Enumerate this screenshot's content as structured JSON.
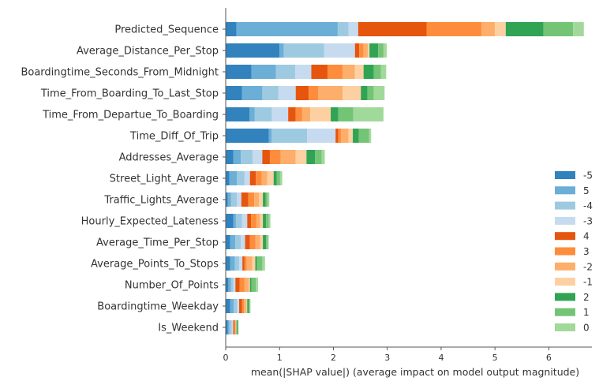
{
  "chart_data": {
    "type": "bar",
    "stacked": true,
    "orientation": "horizontal",
    "title": "",
    "xlabel": "mean(|SHAP value|) (average impact on model output magnitude)",
    "ylabel": "",
    "xlim": [
      0,
      6.8
    ],
    "xticks": [
      "0",
      "1",
      "2",
      "3",
      "4",
      "5",
      "6"
    ],
    "grid": false,
    "legend_position": "lower-right",
    "categories": [
      "Predicted_Sequence",
      "Average_Distance_Per_Stop",
      "Boardingtime_Seconds_From_Midnight",
      "Time_From_Boarding_To_Last_Stop",
      "Time_From_Departue_To_Boarding",
      "Time_Diff_Of_Trip",
      "Addresses_Average",
      "Street_Light_Average",
      "Traffic_Lights_Average",
      "Hourly_Expected_Lateness",
      "Average_Time_Per_Stop",
      "Average_Points_To_Stops",
      "Number_Of_Points",
      "Boardingtime_Weekday",
      "Is_Weekend"
    ],
    "series": [
      {
        "name": "-5",
        "color": "#3182bd",
        "values": [
          0.2,
          1.0,
          0.48,
          0.3,
          0.44,
          0.8,
          0.14,
          0.07,
          0.04,
          0.14,
          0.08,
          0.08,
          0.05,
          0.08,
          0.04
        ]
      },
      {
        "name": "5",
        "color": "#6baed6",
        "values": [
          1.88,
          0.08,
          0.45,
          0.38,
          0.1,
          0.05,
          0.14,
          0.14,
          0.06,
          0.05,
          0.1,
          0.09,
          0.05,
          0.07,
          0.03
        ]
      },
      {
        "name": "-4",
        "color": "#9ecae1",
        "values": [
          0.2,
          0.75,
          0.36,
          0.3,
          0.32,
          0.66,
          0.22,
          0.14,
          0.11,
          0.11,
          0.1,
          0.08,
          0.04,
          0.06,
          0.04
        ]
      },
      {
        "name": "-3",
        "color": "#c6dbef",
        "values": [
          0.18,
          0.57,
          0.3,
          0.32,
          0.3,
          0.53,
          0.18,
          0.1,
          0.08,
          0.1,
          0.08,
          0.06,
          0.04,
          0.04,
          0.03
        ]
      },
      {
        "name": "4",
        "color": "#e6550d",
        "values": [
          1.27,
          0.08,
          0.3,
          0.24,
          0.14,
          0.05,
          0.14,
          0.11,
          0.13,
          0.07,
          0.09,
          0.04,
          0.08,
          0.05,
          0.02
        ]
      },
      {
        "name": "3",
        "color": "#fd8d3c",
        "values": [
          1.02,
          0.08,
          0.28,
          0.18,
          0.12,
          0.05,
          0.2,
          0.11,
          0.11,
          0.1,
          0.1,
          0.04,
          0.09,
          0.04,
          0.02
        ]
      },
      {
        "name": "-2",
        "color": "#fdae6b",
        "values": [
          0.25,
          0.08,
          0.23,
          0.45,
          0.15,
          0.14,
          0.28,
          0.1,
          0.09,
          0.07,
          0.09,
          0.1,
          0.08,
          0.04,
          0.01
        ]
      },
      {
        "name": "-1",
        "color": "#fdd0a2",
        "values": [
          0.2,
          0.03,
          0.16,
          0.34,
          0.38,
          0.08,
          0.2,
          0.12,
          0.07,
          0.05,
          0.05,
          0.06,
          0.02,
          0.02,
          0.01
        ]
      },
      {
        "name": "2",
        "color": "#31a354",
        "values": [
          0.7,
          0.16,
          0.19,
          0.12,
          0.14,
          0.11,
          0.16,
          0.06,
          0.05,
          0.06,
          0.06,
          0.03,
          0.03,
          0.03,
          0.02
        ]
      },
      {
        "name": "1",
        "color": "#74c476",
        "values": [
          0.55,
          0.1,
          0.13,
          0.12,
          0.28,
          0.19,
          0.12,
          0.06,
          0.04,
          0.05,
          0.03,
          0.1,
          0.08,
          0.02,
          0.01
        ]
      },
      {
        "name": "0",
        "color": "#a1d99b",
        "values": [
          0.2,
          0.06,
          0.1,
          0.2,
          0.56,
          0.04,
          0.06,
          0.04,
          0.03,
          0.03,
          0.02,
          0.05,
          0.04,
          0.01,
          0.01
        ]
      }
    ]
  }
}
